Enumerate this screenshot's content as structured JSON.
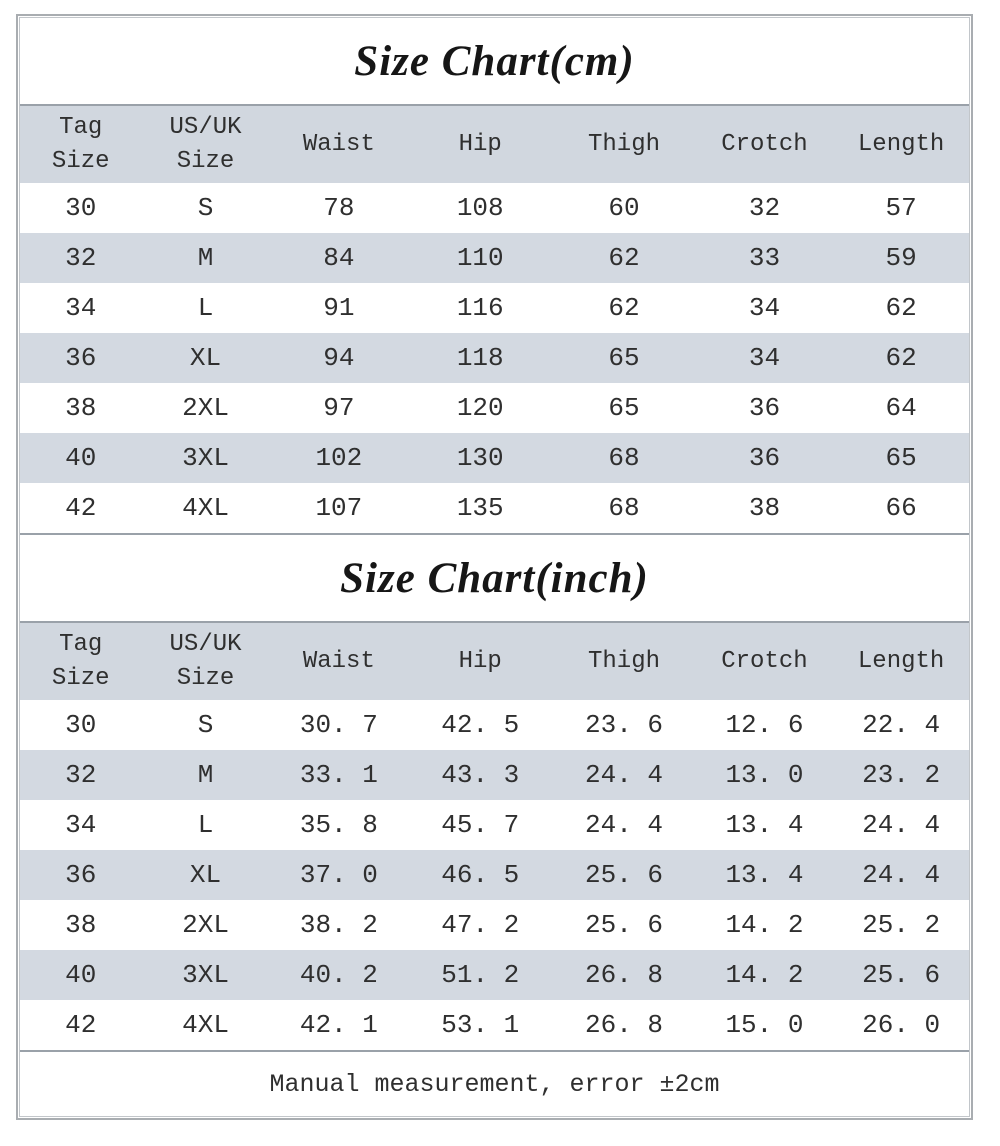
{
  "colors": {
    "header_band": "#d1d7df",
    "alt_row_band": "#d3d9e1",
    "divider_line": "#9aa1a9",
    "outer_border": "#a9adb1",
    "text": "#2f2f2f"
  },
  "footer": {
    "note": "Manual measurement, error ±2cm"
  },
  "chart_data": [
    {
      "type": "table",
      "title": "Size Chart(cm)",
      "unit": "cm",
      "columns": [
        "Tag\nSize",
        "US/UK\nSize",
        "Waist",
        "Hip",
        "Thigh",
        "Crotch",
        "Length"
      ],
      "rows": [
        [
          "30",
          "S",
          "78",
          "108",
          "60",
          "32",
          "57"
        ],
        [
          "32",
          "M",
          "84",
          "110",
          "62",
          "33",
          "59"
        ],
        [
          "34",
          "L",
          "91",
          "116",
          "62",
          "34",
          "62"
        ],
        [
          "36",
          "XL",
          "94",
          "118",
          "65",
          "34",
          "62"
        ],
        [
          "38",
          "2XL",
          "97",
          "120",
          "65",
          "36",
          "64"
        ],
        [
          "40",
          "3XL",
          "102",
          "130",
          "68",
          "36",
          "65"
        ],
        [
          "42",
          "4XL",
          "107",
          "135",
          "68",
          "38",
          "66"
        ]
      ]
    },
    {
      "type": "table",
      "title": "Size Chart(inch)",
      "unit": "inch",
      "columns": [
        "Tag\nSize",
        "US/UK\nSize",
        "Waist",
        "Hip",
        "Thigh",
        "Crotch",
        "Length"
      ],
      "rows": [
        [
          "30",
          "S",
          "30. 7",
          "42. 5",
          "23. 6",
          "12. 6",
          "22. 4"
        ],
        [
          "32",
          "M",
          "33. 1",
          "43. 3",
          "24. 4",
          "13. 0",
          "23. 2"
        ],
        [
          "34",
          "L",
          "35. 8",
          "45. 7",
          "24. 4",
          "13. 4",
          "24. 4"
        ],
        [
          "36",
          "XL",
          "37. 0",
          "46. 5",
          "25. 6",
          "13. 4",
          "24. 4"
        ],
        [
          "38",
          "2XL",
          "38. 2",
          "47. 2",
          "25. 6",
          "14. 2",
          "25. 2"
        ],
        [
          "40",
          "3XL",
          "40. 2",
          "51. 2",
          "26. 8",
          "14. 2",
          "25. 6"
        ],
        [
          "42",
          "4XL",
          "42. 1",
          "53. 1",
          "26. 8",
          "15. 0",
          "26. 0"
        ]
      ]
    }
  ]
}
